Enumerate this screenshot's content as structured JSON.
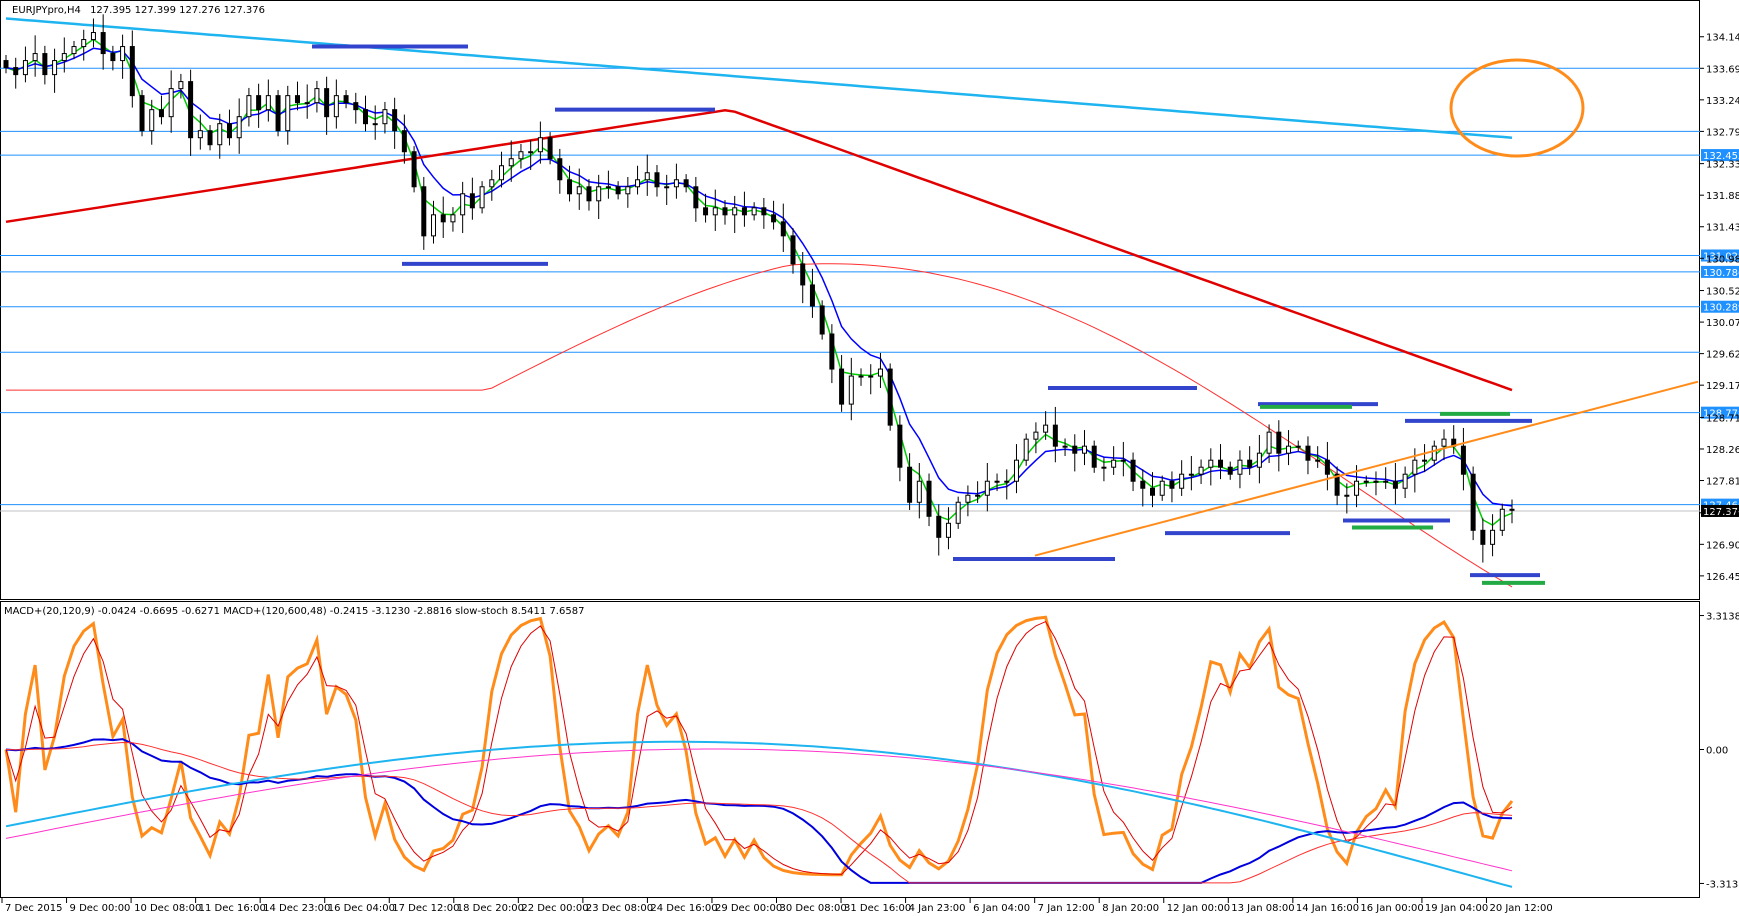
{
  "header": {
    "symbol": "EURJPYpro,H4",
    "ohlc": "127.395 127.399 127.276 127.376"
  },
  "chart_data": {
    "type": "candlestick",
    "main": {
      "ylim": [
        126.22,
        134.55
      ],
      "yticks": [
        "134.140",
        "133.690",
        "133.240",
        "132.790",
        "132.330",
        "131.880",
        "131.430",
        "130.980",
        "130.520",
        "130.070",
        "129.620",
        "129.170",
        "128.710",
        "128.260",
        "127.810",
        "127.350",
        "126.900",
        "126.450"
      ],
      "levels": [
        {
          "value": 133.69,
          "tag": ""
        },
        {
          "value": 132.79,
          "tag": ""
        },
        {
          "value": 132.452,
          "tag": "132.452"
        },
        {
          "value": 131.02,
          "tag": "131.020"
        },
        {
          "value": 130.786,
          "tag": "130.786"
        },
        {
          "value": 130.289,
          "tag": "130.289"
        },
        {
          "value": 129.64,
          "tag": ""
        },
        {
          "value": 128.778,
          "tag": "128.778"
        },
        {
          "value": 127.466,
          "tag": "127.466"
        }
      ],
      "current_price": "127.376",
      "series_close": [
        133.7,
        133.6,
        133.8,
        133.9,
        133.6,
        133.8,
        133.9,
        134.0,
        134.1,
        134.2,
        133.9,
        133.8,
        134.0,
        133.3,
        132.8,
        133.1,
        133.0,
        133.4,
        133.5,
        132.7,
        132.8,
        132.6,
        132.9,
        132.7,
        133.0,
        133.3,
        133.1,
        133.3,
        132.8,
        133.3,
        133.2,
        133.2,
        133.4,
        133.0,
        133.3,
        133.2,
        133.1,
        132.9,
        132.9,
        133.1,
        132.8,
        132.5,
        132.0,
        131.3,
        131.6,
        131.5,
        131.6,
        131.9,
        131.7,
        132.0,
        132.1,
        132.3,
        132.4,
        132.5,
        132.5,
        132.7,
        132.4,
        132.1,
        131.9,
        132.0,
        131.8,
        132.0,
        132.0,
        131.9,
        132.0,
        132.1,
        132.2,
        132.0,
        132.0,
        132.1,
        132.0,
        131.7,
        131.6,
        131.7,
        131.6,
        131.7,
        131.6,
        131.7,
        131.6,
        131.5,
        131.3,
        130.9,
        130.6,
        130.3,
        129.9,
        129.4,
        128.9,
        129.3,
        129.3,
        129.3,
        129.4,
        128.6,
        128.0,
        127.5,
        127.8,
        127.3,
        127.0,
        127.2,
        127.5,
        127.6,
        127.6,
        127.8,
        127.8,
        127.8,
        128.1,
        128.4,
        128.5,
        128.6,
        128.3,
        128.3,
        128.2,
        128.3,
        128.0,
        128.0,
        128.1,
        128.1,
        127.8,
        127.7,
        127.6,
        127.8,
        127.7,
        127.9,
        127.9,
        128.0,
        128.1,
        128.0,
        127.9,
        128.1,
        128.0,
        128.2,
        128.5,
        128.2,
        128.3,
        128.3,
        128.1,
        128.1,
        127.9,
        127.6,
        127.6,
        127.8,
        127.8,
        127.8,
        127.8,
        127.7,
        127.9,
        128.1,
        128.1,
        128.3,
        128.4,
        128.3,
        127.9,
        127.1,
        126.9,
        127.1,
        127.4,
        127.4
      ]
    },
    "indicator": {
      "label": "MACD+(20,120,9) -0.0424 -0.6695 -0.6271  MACD+(120,600,48) -0.2415 -3.1230 -2.8816  slow-stoch 8.5411 7.6587",
      "yticks": [
        "3.3138",
        "0.00",
        "-3.3138"
      ],
      "ylim": [
        -3.55,
        3.55
      ]
    },
    "x_labels": [
      "7 Dec 2015",
      "9 Dec 00:00",
      "10 Dec 08:00",
      "11 Dec 16:00",
      "14 Dec 23:00",
      "16 Dec 04:00",
      "17 Dec 12:00",
      "18 Dec 20:00",
      "22 Dec 00:00",
      "23 Dec 08:00",
      "24 Dec 16:00",
      "29 Dec 00:00",
      "30 Dec 08:00",
      "31 Dec 16:00",
      "4 Jan 23:00",
      "6 Jan 04:00",
      "7 Jan 12:00",
      "8 Jan 20:00",
      "12 Jan 00:00",
      "13 Jan 08:00",
      "14 Jan 16:00",
      "16 Jan 00:00",
      "19 Jan 04:00",
      "20 Jan 12:00"
    ]
  }
}
